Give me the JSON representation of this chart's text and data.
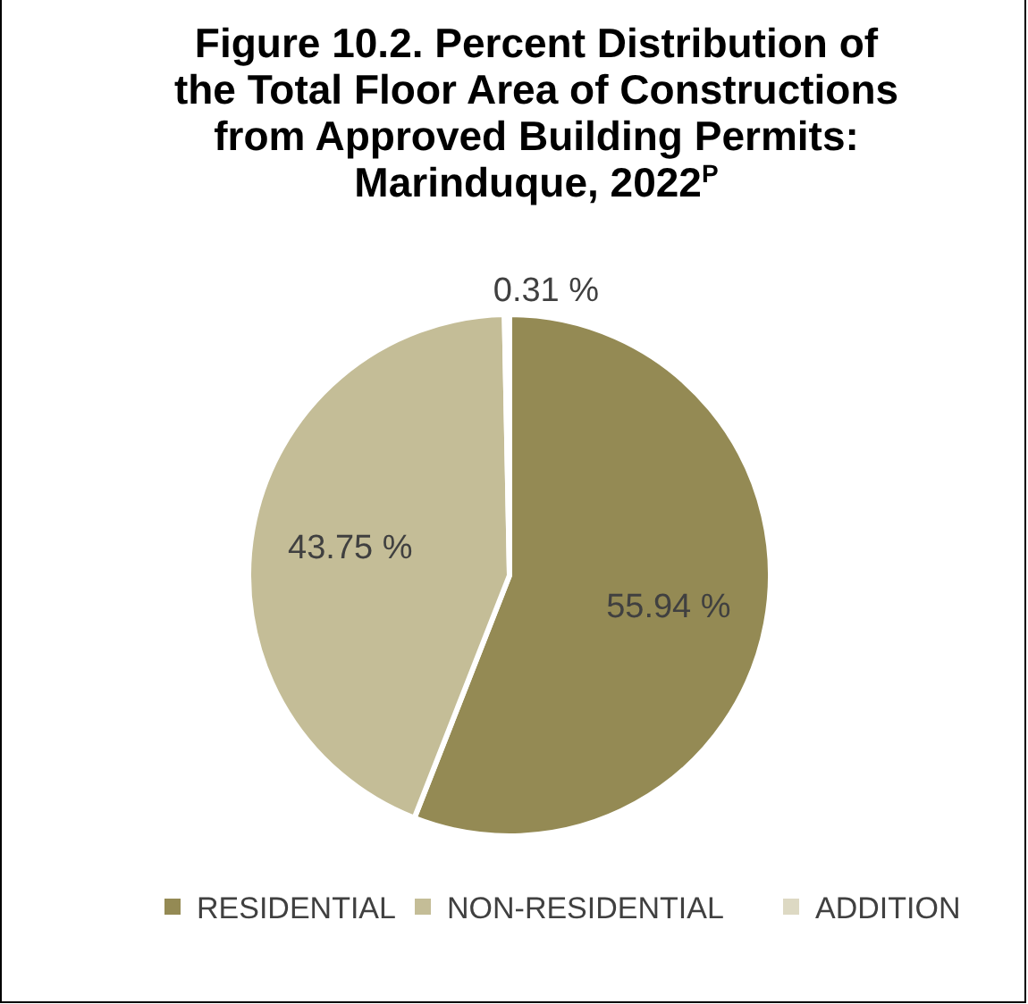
{
  "chart_data": {
    "type": "pie",
    "title": "Figure 10.2. Percent Distribution of the Total Floor Area of Constructions from Approved Building Permits: Marinduque, 2022$^{P}$",
    "categories": [
      "RESIDENTIAL",
      "NON-RESIDENTIAL",
      "ADDITION"
    ],
    "values": [
      55.94,
      43.75,
      0.31
    ],
    "value_labels": [
      "55.94 %",
      "43.75 %",
      "0.31 %"
    ],
    "colors": [
      "#948a54",
      "#c4bd97",
      "#ddd9c3"
    ],
    "legend": "bottom"
  }
}
